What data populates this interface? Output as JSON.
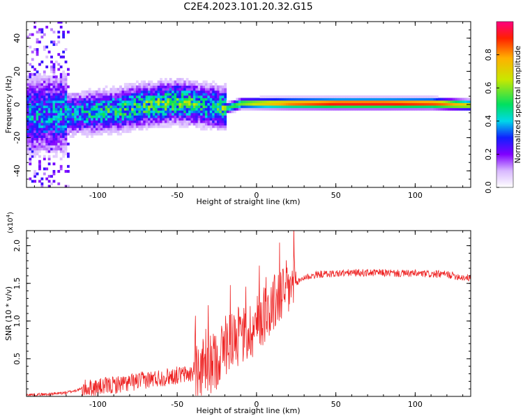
{
  "figure": {
    "title": "C2E4.2023.101.20.32.G15"
  },
  "chart_data": [
    {
      "type": "heatmap",
      "xlabel": "Height of straight line (km)",
      "ylabel": "Frequency (Hz)",
      "xlim": [
        -145,
        135
      ],
      "ylim": [
        -50,
        50
      ],
      "xticks": [
        -100,
        -50,
        0,
        50,
        100
      ],
      "xtick_labels": [
        "-100",
        "-50",
        "0",
        "50",
        "100"
      ],
      "yticks": [
        -40,
        -20,
        0,
        20,
        40
      ],
      "ytick_labels": [
        "-40",
        "-20",
        "0",
        "20",
        "40"
      ],
      "colorbar": {
        "label": "Normalized spectral amplitude",
        "range": [
          0,
          1
        ],
        "ticks": [
          0.0,
          0.2,
          0.4,
          0.6,
          0.8
        ],
        "tick_labels": [
          "0.0",
          "0.2",
          "0.4",
          "0.6",
          "0.8"
        ],
        "colormap": [
          "#ffffff",
          "#d8b8ff",
          "#8000ff",
          "#1020ff",
          "#00d8e8",
          "#00e060",
          "#c8e800",
          "#ffb000",
          "#ff2000",
          "#ff0080"
        ]
      },
      "ridge": {
        "description_values": "peak frequency (Hz) versus height (km)",
        "x": [
          -130,
          -110,
          -90,
          -70,
          -50,
          -35,
          -20,
          -10,
          0,
          20,
          50,
          80,
          110,
          133
        ],
        "y": [
          -7,
          -6,
          -4,
          -1,
          1,
          -1,
          -3,
          0,
          0,
          0,
          0,
          0,
          0,
          -1
        ],
        "amplitude": [
          0.35,
          0.4,
          0.45,
          0.5,
          0.5,
          0.45,
          0.5,
          0.6,
          0.7,
          0.85,
          0.95,
          0.95,
          0.9,
          0.7
        ]
      }
    },
    {
      "type": "line",
      "xlabel": "Height of straight line (km)",
      "ylabel": "SNR (10 * v/v)",
      "y_multiplier": "(x10",
      "y_multiplier_exp": "4",
      "y_multiplier_close": ")",
      "xlim": [
        -145,
        135
      ],
      "ylim": [
        0,
        2.2
      ],
      "xticks": [
        -100,
        -50,
        0,
        50,
        100
      ],
      "xtick_labels": [
        "-100",
        "-50",
        "0",
        "50",
        "100"
      ],
      "yticks": [
        0.5,
        1.0,
        1.5,
        2.0
      ],
      "ytick_labels": [
        "0.5",
        "1.0",
        "1.5",
        "2.0"
      ],
      "series": [
        {
          "color": "#ee2222",
          "x": [
            -145,
            -130,
            -120,
            -110,
            -100,
            -90,
            -80,
            -70,
            -60,
            -50,
            -40,
            -30,
            -25,
            -20,
            -15,
            -10,
            -5,
            0,
            5,
            10,
            15,
            20,
            25,
            30,
            40,
            50,
            60,
            70,
            80,
            90,
            100,
            110,
            120,
            130,
            135
          ],
          "y": [
            0.02,
            0.03,
            0.05,
            0.1,
            0.12,
            0.15,
            0.18,
            0.22,
            0.25,
            0.28,
            0.3,
            0.4,
            0.5,
            0.65,
            0.8,
            0.78,
            0.85,
            0.95,
            1.1,
            1.2,
            1.35,
            1.42,
            1.5,
            1.58,
            1.62,
            1.63,
            1.64,
            1.64,
            1.64,
            1.63,
            1.63,
            1.62,
            1.62,
            1.58,
            1.57
          ]
        }
      ]
    }
  ]
}
